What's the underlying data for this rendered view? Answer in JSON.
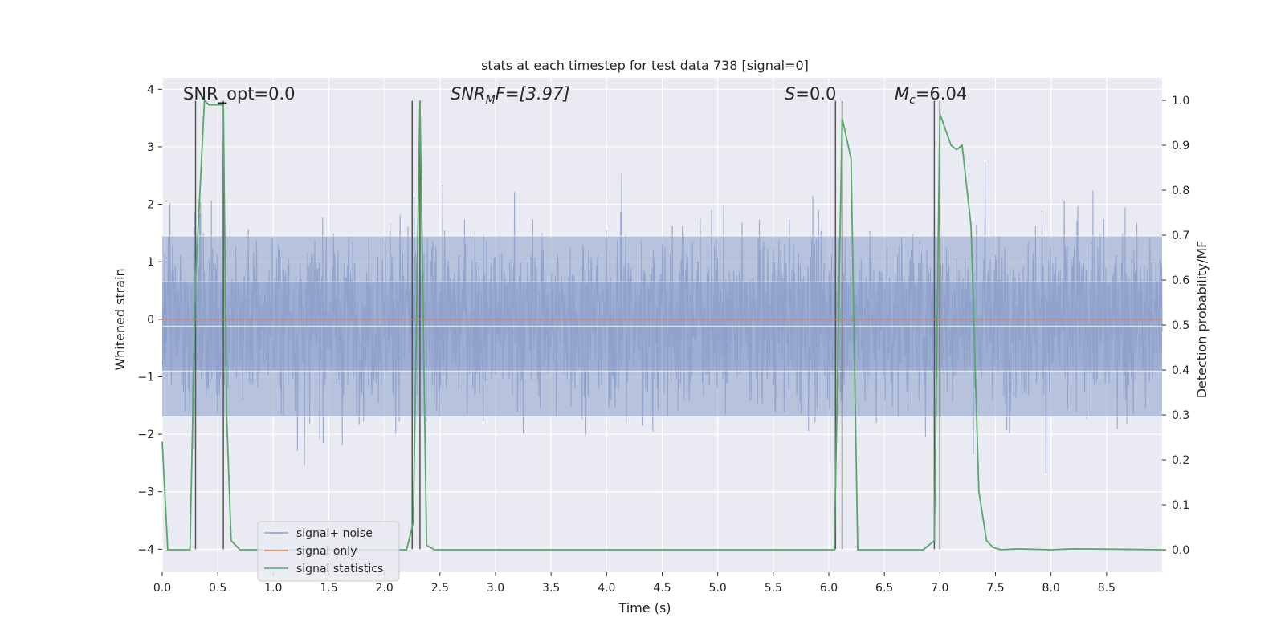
{
  "chart_data": {
    "type": "line",
    "title": "stats at each timestep for test data 738 [signal=0]",
    "xlabel": "Time (s)",
    "ylabel_left": "Whitened strain",
    "ylabel_right": "Detection probability/MF",
    "xlim": [
      0.0,
      9.0
    ],
    "ylim_left": [
      -4.4,
      4.2
    ],
    "ylim_right": [
      -0.05,
      1.05
    ],
    "x_ticks": [
      "0.0",
      "0.5",
      "1.0",
      "1.5",
      "2.0",
      "2.5",
      "3.0",
      "3.5",
      "4.0",
      "4.5",
      "5.0",
      "5.5",
      "6.0",
      "6.5",
      "7.0",
      "7.5",
      "8.0",
      "8.5"
    ],
    "y_ticks_left": [
      "−4",
      "−3",
      "−2",
      "−1",
      "0",
      "1",
      "2",
      "3",
      "4"
    ],
    "y_ticks_right": [
      "0.0",
      "0.1",
      "0.2",
      "0.3",
      "0.4",
      "0.5",
      "0.6",
      "0.7",
      "0.8",
      "0.9",
      "1.0"
    ],
    "grid": true,
    "legend_position": "lower-left",
    "annotations": {
      "snr_opt": "SNR_opt=0.0",
      "snr_mf_main": "SNR",
      "snr_mf_sub": "M",
      "snr_mf_rest": "F=[3.97]",
      "s_main": "S",
      "s_rest": "=0.0",
      "mc_main": "M",
      "mc_sub": "c",
      "mc_rest": "=6.04"
    },
    "series": [
      {
        "name": "signal+ noise",
        "color": "#8da0cb",
        "description_of_values": "whitened strain noise, approx ±2 with peaks to ±3.6",
        "envelope_inner": [
          -0.9,
          0.65
        ],
        "envelope_outer": [
          -1.7,
          1.45
        ]
      },
      {
        "name": "signal only",
        "color": "#dd8452",
        "x": [
          0.0,
          9.0
        ],
        "y": [
          0.0,
          0.0
        ]
      },
      {
        "name": "signal statistics",
        "color": "#55a868",
        "axis": "right",
        "x": [
          0.0,
          0.05,
          0.25,
          0.3,
          0.38,
          0.42,
          0.55,
          0.58,
          0.62,
          0.7,
          2.2,
          2.26,
          2.32,
          2.35,
          2.38,
          2.45,
          6.05,
          6.12,
          6.2,
          6.26,
          6.85,
          6.95,
          7.0,
          7.1,
          7.15,
          7.2,
          7.28,
          7.35,
          7.42,
          7.48,
          7.55,
          7.7,
          8.0,
          8.2,
          8.6,
          9.0
        ],
        "y": [
          0.24,
          0.0,
          0.0,
          0.6,
          1.0,
          0.99,
          0.99,
          0.3,
          0.02,
          0.0,
          0.0,
          0.06,
          1.0,
          0.5,
          0.01,
          0.0,
          0.0,
          0.96,
          0.87,
          0.0,
          0.0,
          0.02,
          0.97,
          0.9,
          0.89,
          0.9,
          0.72,
          0.13,
          0.02,
          0.005,
          0.0,
          0.002,
          0.0,
          0.002,
          0.001,
          0.0
        ]
      }
    ],
    "vertical_markers_x": [
      0.3,
      0.55,
      2.25,
      2.32,
      6.06,
      6.12,
      6.95,
      7.0
    ]
  },
  "legend": {
    "items": [
      {
        "label": "signal+ noise",
        "color": "#8da0cb"
      },
      {
        "label": "signal only",
        "color": "#dd8452"
      },
      {
        "label": "signal statistics",
        "color": "#55a868"
      }
    ]
  }
}
